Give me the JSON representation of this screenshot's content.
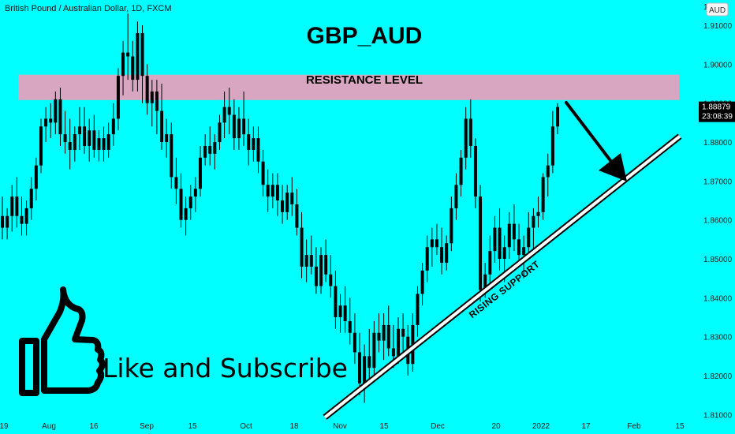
{
  "header": {
    "symbol_label": "British Pound / Australian Dollar, 1D, FXCM",
    "currency_button": "AUD"
  },
  "chart_data": {
    "type": "candlestick",
    "title": "GBP_AUD",
    "resistance_label": "RESISTANCE LEVEL",
    "resistance_zone": [
      1.8908,
      1.8973
    ],
    "support_label": "RISING SUPPORT",
    "support_line": [
      {
        "x": "Oct 30, 2021",
        "y": 1.8093
      },
      {
        "x": "Jan 27, 2022",
        "y": 1.8815
      }
    ],
    "last_price": "1.88879",
    "countdown": "23:08:39",
    "ylim": [
      1.805,
      1.9165
    ],
    "y_ticks": [
      "1.91000",
      "1.90000",
      "1.89000",
      "1.88000",
      "1.87000",
      "1.86000",
      "1.85000",
      "1.84000",
      "1.83000",
      "1.82000",
      "1.81000"
    ],
    "x_ticks": [
      "19",
      "Aug",
      "16",
      "Sep",
      "15",
      "Oct",
      "18",
      "Nov",
      "15",
      "Dec",
      "20",
      "2022",
      "17",
      "Feb",
      "15"
    ],
    "candles": [
      [
        1.861,
        1.866,
        1.855,
        1.858
      ],
      [
        1.858,
        1.863,
        1.855,
        1.861
      ],
      [
        1.861,
        1.869,
        1.857,
        1.866
      ],
      [
        1.866,
        1.871,
        1.858,
        1.861
      ],
      [
        1.861,
        1.866,
        1.856,
        1.859
      ],
      [
        1.859,
        1.865,
        1.856,
        1.863
      ],
      [
        1.863,
        1.871,
        1.86,
        1.868
      ],
      [
        1.868,
        1.876,
        1.865,
        1.874
      ],
      [
        1.874,
        1.886,
        1.872,
        1.884
      ],
      [
        1.884,
        1.889,
        1.88,
        1.886
      ],
      [
        1.886,
        1.89,
        1.881,
        1.885
      ],
      [
        1.885,
        1.893,
        1.882,
        1.891
      ],
      [
        1.891,
        1.894,
        1.879,
        1.882
      ],
      [
        1.882,
        1.888,
        1.877,
        1.88
      ],
      [
        1.88,
        1.886,
        1.873,
        1.878
      ],
      [
        1.878,
        1.884,
        1.875,
        1.882
      ],
      [
        1.882,
        1.889,
        1.878,
        1.884
      ],
      [
        1.884,
        1.889,
        1.877,
        1.879
      ],
      [
        1.879,
        1.886,
        1.875,
        1.883
      ],
      [
        1.883,
        1.887,
        1.876,
        1.878
      ],
      [
        1.878,
        1.883,
        1.875,
        1.881
      ],
      [
        1.881,
        1.884,
        1.875,
        1.878
      ],
      [
        1.878,
        1.885,
        1.876,
        1.882
      ],
      [
        1.882,
        1.89,
        1.879,
        1.886
      ],
      [
        1.886,
        1.899,
        1.883,
        1.897
      ],
      [
        1.897,
        1.906,
        1.892,
        1.903
      ],
      [
        1.903,
        1.913,
        1.896,
        1.902
      ],
      [
        1.902,
        1.906,
        1.893,
        1.896
      ],
      [
        1.896,
        1.911,
        1.893,
        1.908
      ],
      [
        1.908,
        1.91,
        1.89,
        1.897
      ],
      [
        1.897,
        1.9,
        1.887,
        1.89
      ],
      [
        1.89,
        1.896,
        1.884,
        1.893
      ],
      [
        1.893,
        1.896,
        1.882,
        1.888
      ],
      [
        1.888,
        1.895,
        1.878,
        1.88
      ],
      [
        1.88,
        1.886,
        1.876,
        1.882
      ],
      [
        1.882,
        1.885,
        1.868,
        1.871
      ],
      [
        1.871,
        1.876,
        1.864,
        1.868
      ],
      [
        1.868,
        1.872,
        1.858,
        1.86
      ],
      [
        1.86,
        1.866,
        1.856,
        1.863
      ],
      [
        1.863,
        1.869,
        1.86,
        1.866
      ],
      [
        1.866,
        1.871,
        1.862,
        1.868
      ],
      [
        1.868,
        1.879,
        1.866,
        1.876
      ],
      [
        1.876,
        1.882,
        1.874,
        1.879
      ],
      [
        1.879,
        1.884,
        1.874,
        1.877
      ],
      [
        1.877,
        1.882,
        1.873,
        1.88
      ],
      [
        1.88,
        1.887,
        1.878,
        1.885
      ],
      [
        1.885,
        1.893,
        1.881,
        1.889
      ],
      [
        1.889,
        1.894,
        1.882,
        1.887
      ],
      [
        1.887,
        1.891,
        1.878,
        1.881
      ],
      [
        1.881,
        1.889,
        1.878,
        1.886
      ],
      [
        1.886,
        1.893,
        1.879,
        1.882
      ],
      [
        1.882,
        1.886,
        1.874,
        1.878
      ],
      [
        1.878,
        1.884,
        1.875,
        1.881
      ],
      [
        1.881,
        1.884,
        1.872,
        1.875
      ],
      [
        1.875,
        1.878,
        1.866,
        1.869
      ],
      [
        1.869,
        1.873,
        1.862,
        1.866
      ],
      [
        1.866,
        1.872,
        1.863,
        1.869
      ],
      [
        1.869,
        1.872,
        1.861,
        1.865
      ],
      [
        1.865,
        1.869,
        1.859,
        1.862
      ],
      [
        1.862,
        1.869,
        1.86,
        1.867
      ],
      [
        1.867,
        1.871,
        1.861,
        1.864
      ],
      [
        1.864,
        1.868,
        1.856,
        1.858
      ],
      [
        1.858,
        1.862,
        1.845,
        1.848
      ],
      [
        1.848,
        1.855,
        1.844,
        1.851
      ],
      [
        1.851,
        1.856,
        1.846,
        1.848
      ],
      [
        1.848,
        1.853,
        1.841,
        1.843
      ],
      [
        1.843,
        1.853,
        1.841,
        1.851
      ],
      [
        1.851,
        1.855,
        1.844,
        1.846
      ],
      [
        1.846,
        1.851,
        1.84,
        1.843
      ],
      [
        1.843,
        1.847,
        1.832,
        1.835
      ],
      [
        1.835,
        1.841,
        1.831,
        1.838
      ],
      [
        1.838,
        1.843,
        1.831,
        1.834
      ],
      [
        1.834,
        1.84,
        1.828,
        1.831
      ],
      [
        1.831,
        1.836,
        1.823,
        1.826
      ],
      [
        1.826,
        1.831,
        1.815,
        1.818
      ],
      [
        1.818,
        1.828,
        1.813,
        1.825
      ],
      [
        1.825,
        1.832,
        1.818,
        1.822
      ],
      [
        1.822,
        1.834,
        1.82,
        1.831
      ],
      [
        1.831,
        1.836,
        1.826,
        1.829
      ],
      [
        1.829,
        1.836,
        1.824,
        1.833
      ],
      [
        1.833,
        1.838,
        1.825,
        1.827
      ],
      [
        1.827,
        1.833,
        1.822,
        1.825
      ],
      [
        1.825,
        1.835,
        1.823,
        1.832
      ],
      [
        1.832,
        1.836,
        1.826,
        1.83
      ],
      [
        1.83,
        1.833,
        1.82,
        1.823
      ],
      [
        1.823,
        1.836,
        1.821,
        1.833
      ],
      [
        1.833,
        1.843,
        1.83,
        1.841
      ],
      [
        1.841,
        1.849,
        1.838,
        1.847
      ],
      [
        1.847,
        1.856,
        1.844,
        1.853
      ],
      [
        1.853,
        1.858,
        1.848,
        1.855
      ],
      [
        1.855,
        1.859,
        1.851,
        1.853
      ],
      [
        1.853,
        1.858,
        1.846,
        1.849
      ],
      [
        1.849,
        1.856,
        1.847,
        1.854
      ],
      [
        1.854,
        1.866,
        1.852,
        1.863
      ],
      [
        1.863,
        1.872,
        1.86,
        1.869
      ],
      [
        1.869,
        1.878,
        1.866,
        1.876
      ],
      [
        1.876,
        1.889,
        1.873,
        1.886
      ],
      [
        1.886,
        1.891,
        1.876,
        1.879
      ],
      [
        1.879,
        1.881,
        1.863,
        1.866
      ],
      [
        1.866,
        1.869,
        1.839,
        1.842
      ],
      [
        1.842,
        1.849,
        1.84,
        1.846
      ],
      [
        1.846,
        1.856,
        1.843,
        1.852
      ],
      [
        1.852,
        1.861,
        1.849,
        1.858
      ],
      [
        1.858,
        1.863,
        1.847,
        1.85
      ],
      [
        1.85,
        1.856,
        1.844,
        1.853
      ],
      [
        1.853,
        1.862,
        1.85,
        1.859
      ],
      [
        1.859,
        1.864,
        1.852,
        1.855
      ],
      [
        1.855,
        1.859,
        1.848,
        1.851
      ],
      [
        1.851,
        1.856,
        1.845,
        1.853
      ],
      [
        1.853,
        1.862,
        1.85,
        1.858
      ],
      [
        1.858,
        1.863,
        1.852,
        1.861
      ],
      [
        1.861,
        1.866,
        1.858,
        1.862
      ],
      [
        1.862,
        1.872,
        1.86,
        1.871
      ],
      [
        1.871,
        1.877,
        1.866,
        1.874
      ],
      [
        1.874,
        1.888,
        1.872,
        1.884
      ],
      [
        1.884,
        1.89,
        1.882,
        1.889
      ]
    ]
  },
  "promo": {
    "text": "Like and Subscribe",
    "icon": "thumbs-up-icon"
  },
  "colors": {
    "background": "#00ffff",
    "candle": "#000000",
    "resistance_zone": "#d9a6c2",
    "price_tag": "#000000"
  }
}
